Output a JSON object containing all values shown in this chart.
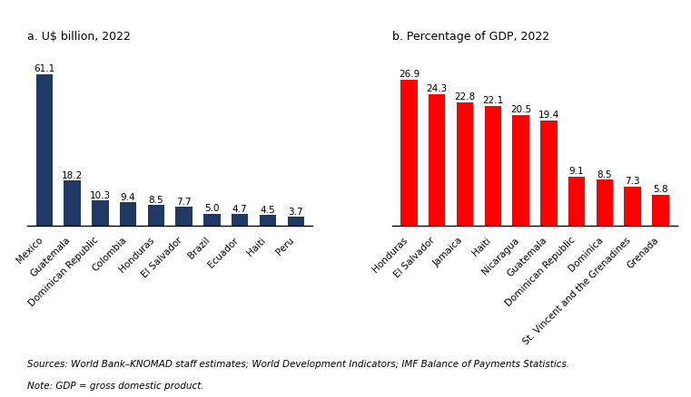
{
  "panel_a": {
    "title": "a. U$ billion, 2022",
    "categories": [
      "Mexico",
      "Guatemala",
      "Dominican Republic",
      "Colombia",
      "Honduras",
      "El Salvador",
      "Brazil",
      "Ecuador",
      "Haiti",
      "Peru"
    ],
    "values": [
      61.1,
      18.2,
      10.3,
      9.4,
      8.5,
      7.7,
      5.0,
      4.7,
      4.5,
      3.7
    ],
    "bar_color": "#1F3864"
  },
  "panel_b": {
    "title": "b. Percentage of GDP, 2022",
    "categories": [
      "Honduras",
      "El Salvador",
      "Jamaica",
      "Haiti",
      "Nicaragua",
      "Guatemala",
      "Dominican Republic",
      "Dominica",
      "St. Vincent and the Grenadines",
      "Grenada"
    ],
    "values": [
      26.9,
      24.3,
      22.8,
      22.1,
      20.5,
      19.4,
      9.1,
      8.5,
      7.3,
      5.8
    ],
    "bar_color": "#FF0000"
  },
  "footer_line1": "Sources: World Bank–KNOMAD staff estimates; World Development Indicators; IMF Balance of Payments Statistics.",
  "footer_line2": "Note: GDP = gross domestic product.",
  "title_fontsize": 9,
  "tick_fontsize": 7.5,
  "label_fontsize": 7.5,
  "footer_fontsize": 7.5,
  "background_color": "#FFFFFF"
}
